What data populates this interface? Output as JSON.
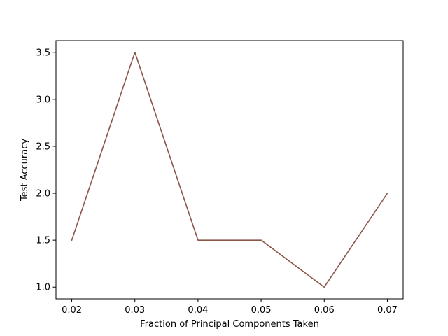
{
  "chart_data": {
    "type": "line",
    "title": "",
    "xlabel": "Fraction of Principal Components Taken",
    "ylabel": "Test Accuracy",
    "x": [
      0.02,
      0.03,
      0.04,
      0.05,
      0.06,
      0.07
    ],
    "series": [
      {
        "values": [
          1.5,
          3.5,
          1.5,
          1.5,
          1.0,
          2.0
        ],
        "color": "#8c564b"
      }
    ],
    "xlim": [
      0.0175,
      0.0725
    ],
    "ylim": [
      0.875,
      3.625
    ],
    "xticks": [
      0.02,
      0.03,
      0.04,
      0.05,
      0.06,
      0.07
    ],
    "xtick_labels": [
      "0.02",
      "0.03",
      "0.04",
      "0.05",
      "0.06",
      "0.07"
    ],
    "yticks": [
      1.0,
      1.5,
      2.0,
      2.5,
      3.0,
      3.5
    ],
    "ytick_labels": [
      "1.0",
      "1.5",
      "2.0",
      "2.5",
      "3.0",
      "3.5"
    ],
    "grid": false,
    "legend": "none"
  }
}
